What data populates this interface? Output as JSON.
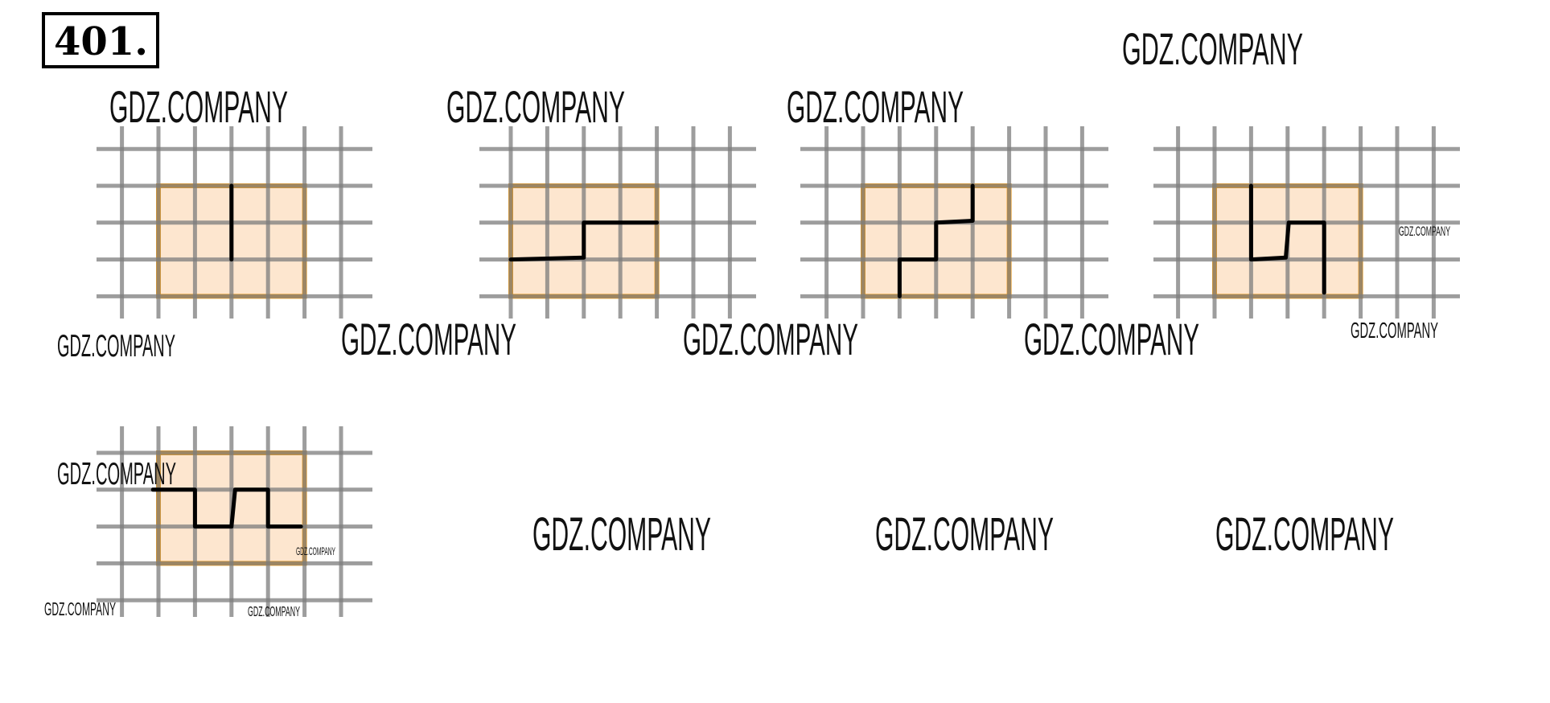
{
  "problem_number": "401.",
  "watermark": "GDZ.COMPANY",
  "colors": {
    "rectangle_fill": "#fde6cf",
    "rectangle_border": "#f9a11b",
    "grid": "#7d7d7d",
    "cut_line": "#000000"
  },
  "figures": [
    {
      "rect_cells": [
        4,
        3
      ],
      "cut_path_cells": [
        [
          2,
          0
        ],
        [
          2,
          2
        ]
      ]
    },
    {
      "rect_cells": [
        4,
        3
      ],
      "cut_path_cells": [
        [
          0,
          2
        ],
        [
          2,
          1.95
        ],
        [
          2,
          1
        ],
        [
          4,
          1
        ]
      ]
    },
    {
      "rect_cells": [
        4,
        3
      ],
      "cut_path_cells": [
        [
          1,
          3
        ],
        [
          1,
          2
        ],
        [
          2,
          2
        ],
        [
          2,
          1
        ],
        [
          3,
          0.95
        ],
        [
          3,
          0
        ]
      ]
    },
    {
      "rect_cells": [
        4,
        3
      ],
      "cut_path_cells": [
        [
          1,
          0
        ],
        [
          1,
          2
        ],
        [
          1.95,
          1.95
        ],
        [
          2.03,
          1
        ],
        [
          3,
          1
        ],
        [
          3,
          2.9
        ]
      ]
    },
    {
      "rect_cells": [
        4,
        3
      ],
      "cut_path_cells": [
        [
          -0.15,
          1
        ],
        [
          1,
          1
        ],
        [
          1,
          2
        ],
        [
          2,
          2
        ],
        [
          2.1,
          1
        ],
        [
          3,
          1
        ],
        [
          3,
          2
        ],
        [
          3.9,
          2
        ]
      ]
    }
  ]
}
